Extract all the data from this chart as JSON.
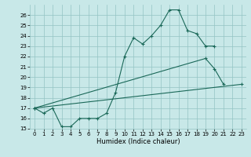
{
  "xlabel": "Humidex (Indice chaleur)",
  "bg_color": "#c8e8e8",
  "grid_color": "#94c4c4",
  "line_color": "#1a6858",
  "line1_x": [
    0,
    1,
    2,
    3,
    4,
    5,
    6,
    7,
    8,
    9,
    10,
    11,
    12,
    13,
    14,
    15,
    16,
    17,
    18,
    19,
    20
  ],
  "line1_y": [
    17.0,
    16.5,
    17.0,
    15.2,
    15.2,
    16.0,
    16.0,
    16.0,
    16.5,
    18.5,
    22.0,
    23.8,
    23.2,
    24.0,
    25.0,
    26.5,
    26.5,
    24.5,
    24.2,
    23.0,
    23.0
  ],
  "line2_x": [
    0,
    19,
    20,
    21
  ],
  "line2_y": [
    17.0,
    21.8,
    20.8,
    19.3
  ],
  "line3_x": [
    0,
    23
  ],
  "line3_y": [
    17.0,
    19.3
  ],
  "ylim": [
    15,
    27
  ],
  "xlim": [
    -0.5,
    23.5
  ],
  "yticks": [
    15,
    16,
    17,
    18,
    19,
    20,
    21,
    22,
    23,
    24,
    25,
    26
  ],
  "xticks": [
    0,
    1,
    2,
    3,
    4,
    5,
    6,
    7,
    8,
    9,
    10,
    11,
    12,
    13,
    14,
    15,
    16,
    17,
    18,
    19,
    20,
    21,
    22,
    23
  ],
  "xlabel_fontsize": 6,
  "tick_fontsize": 5
}
